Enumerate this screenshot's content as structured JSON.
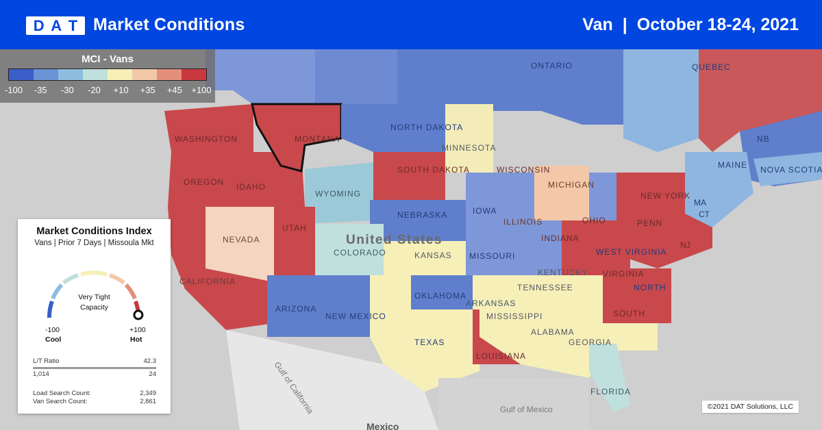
{
  "header": {
    "logo_letters": [
      "D",
      "A",
      "T"
    ],
    "title": "Market Conditions",
    "equipment": "Van",
    "separator": "|",
    "date_range": "October 18-24, 2021"
  },
  "legend": {
    "title": "MCI - Vans",
    "ticks": [
      "-100",
      "-35",
      "-30",
      "-20",
      "+10",
      "+35",
      "+45",
      "+100"
    ],
    "colors": [
      "#3a5fc8",
      "#6b94d6",
      "#8fbde0",
      "#bfe0dc",
      "#f6efb8",
      "#f3c8a8",
      "#e48f7c",
      "#c8383f"
    ]
  },
  "map": {
    "labels": [
      {
        "text": "ONTARIO"
      },
      {
        "text": "QUEBEC"
      },
      {
        "text": "NORTH DAKOTA"
      },
      {
        "text": "MONTANA"
      },
      {
        "text": "WASHINGTON"
      },
      {
        "text": "OREGON"
      },
      {
        "text": "IDAHO"
      },
      {
        "text": "SOUTH DAKOTA"
      },
      {
        "text": "WYOMING"
      },
      {
        "text": "MINNESOTA"
      },
      {
        "text": "WISCONSIN"
      },
      {
        "text": "MICHIGAN"
      },
      {
        "text": "NEBRASKA"
      },
      {
        "text": "IOWA"
      },
      {
        "text": "NEVADA"
      },
      {
        "text": "UTAH"
      },
      {
        "text": "COLORADO"
      },
      {
        "text": "United States"
      },
      {
        "text": "KANSAS"
      },
      {
        "text": "ILLINOIS"
      },
      {
        "text": "INDIANA"
      },
      {
        "text": "OHIO"
      },
      {
        "text": "PENN"
      },
      {
        "text": "NEW YORK"
      },
      {
        "text": "MAINE"
      },
      {
        "text": "NOVA SCOTIA"
      },
      {
        "text": "NB"
      },
      {
        "text": "CALIFORNIA"
      },
      {
        "text": "ARIZONA"
      },
      {
        "text": "NEW MEXICO"
      },
      {
        "text": "OKLAHOMA"
      },
      {
        "text": "MISSOURI"
      },
      {
        "text": "KENTUCKY"
      },
      {
        "text": "WEST VIRGINIA"
      },
      {
        "text": "VIRGINIA"
      },
      {
        "text": "TENNESSEE"
      },
      {
        "text": "ARKANSAS"
      },
      {
        "text": "NORTH"
      },
      {
        "text": "SOUTH"
      },
      {
        "text": "MISSISSIPPI"
      },
      {
        "text": "ALABAMA"
      },
      {
        "text": "GEORGIA"
      },
      {
        "text": "TEXAS"
      },
      {
        "text": "LOUISIANA"
      },
      {
        "text": "FLORIDA"
      },
      {
        "text": "Gulf of California"
      },
      {
        "text": "Gulf of Mexico"
      },
      {
        "text": "Mexico"
      },
      {
        "text": "NJ"
      },
      {
        "text": "CT"
      },
      {
        "text": "MA"
      }
    ]
  },
  "card": {
    "title": "Market Conditions Index",
    "subtitle": "Vans | Prior 7 Days | Missoula Mkt",
    "gauge_status_line1": "Very Tight",
    "gauge_status_line2": "Capacity",
    "gauge_value": 0.98,
    "gauge_min": "-100",
    "gauge_max": "+100",
    "gauge_min_label": "Cool",
    "gauge_max_label": "Hot",
    "lt_ratio_label": "L/T Ratio",
    "lt_ratio_value": "42.3",
    "loads": "1,014",
    "trucks": "24",
    "load_search_label": "Load Search Count:",
    "load_search_value": "2,349",
    "van_search_label": "Van Search Count:",
    "van_search_value": "2,861"
  },
  "copyright": "©2021 DAT Solutions, LLC"
}
